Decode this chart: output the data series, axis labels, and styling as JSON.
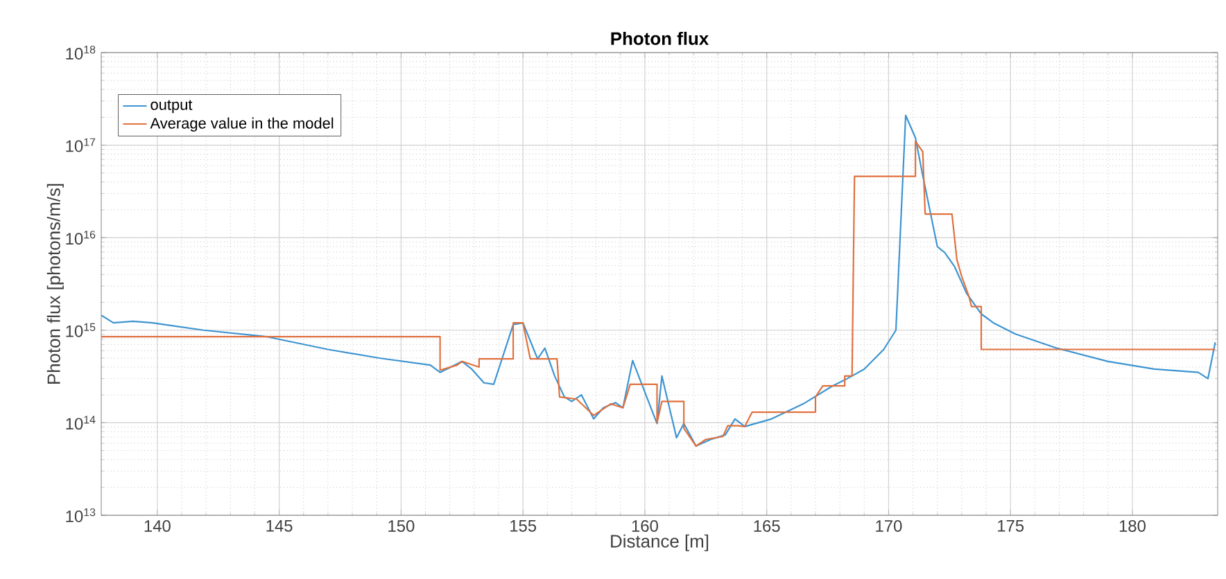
{
  "chart_data": {
    "type": "line",
    "title": "Photon flux",
    "xlabel": "Distance [m]",
    "ylabel": "Photon flux [photons/m/s]",
    "log": "y",
    "grid": true,
    "legend": "top left",
    "xlim": [
      137.7,
      183.5
    ],
    "xticks": [
      140,
      145,
      150,
      155,
      160,
      165,
      170,
      175,
      180
    ],
    "ylim": [
      10000000000000.0,
      1e+18
    ],
    "yticks": [
      {
        "value": 10000000000000.0,
        "label": "10$^{13}$"
      },
      {
        "value": 100000000000000.0,
        "label": "10$^{14}$"
      },
      {
        "value": 1000000000000000.0,
        "label": "10$^{15}$"
      },
      {
        "value": 1e+16,
        "label": "10$^{16}$"
      },
      {
        "value": 1e+17,
        "label": "10$^{17}$"
      },
      {
        "value": 1e+18,
        "label": "10$^{18}$"
      }
    ],
    "series": [
      {
        "name": "output",
        "color": "#3d94d1",
        "x": [
          137.7,
          138.2,
          139.0,
          139.8,
          141.9,
          144.5,
          147.0,
          149.1,
          151.2,
          151.6,
          152.5,
          152.9,
          153.4,
          153.8,
          154.6,
          155.0,
          155.6,
          155.9,
          156.3,
          156.7,
          157.0,
          157.4,
          157.9,
          158.3,
          158.8,
          159.1,
          159.5,
          160.5,
          160.7,
          161.3,
          161.6,
          162.1,
          162.7,
          163.3,
          163.7,
          164.1,
          165.2,
          166.5,
          167.7,
          168.2,
          169.0,
          169.8,
          170.3,
          170.7,
          171.1,
          171.4,
          172.0,
          172.3,
          172.7,
          173.2,
          173.8,
          174.3,
          175.2,
          176.9,
          179.0,
          180.9,
          182.7,
          183.1,
          183.4
        ],
        "values": [
          1450000000000000.0,
          1200000000000000.0,
          1250000000000000.0,
          1200000000000000.0,
          1000000000000000.0,
          850000000000000.0,
          620000000000000.0,
          500000000000000.0,
          420000000000000.0,
          350000000000000.0,
          460000000000000.0,
          380000000000000.0,
          270000000000000.0,
          260000000000000.0,
          1150000000000000.0,
          1200000000000000.0,
          490000000000000.0,
          640000000000000.0,
          320000000000000.0,
          190000000000000.0,
          170000000000000.0,
          200000000000000.0,
          110000000000000.0,
          145000000000000.0,
          165000000000000.0,
          145000000000000.0,
          470000000000000.0,
          98000000000000.0,
          320000000000000.0,
          69000000000000.0,
          98000000000000.0,
          56000000000000.0,
          66000000000000.0,
          74000000000000.0,
          110000000000000.0,
          91000000000000.0,
          110000000000000.0,
          160000000000000.0,
          250000000000000.0,
          290000000000000.0,
          380000000000000.0,
          620000000000000.0,
          1000000000000000.0,
          2.1e+17,
          1.2e+17,
          4.7e+16,
          8000000000000000.0,
          6900000000000000.0,
          4900000000000000.0,
          2500000000000000.0,
          1500000000000000.0,
          1200000000000000.0,
          910000000000000.0,
          640000000000000.0,
          460000000000000.0,
          380000000000000.0,
          350000000000000.0,
          300000000000000.0,
          740000000000000.0
        ]
      },
      {
        "name": "Average value in the model",
        "color": "#e0703e",
        "x": [
          137.7,
          151.6,
          151.6,
          152.3,
          152.5,
          153.2,
          153.2,
          154.6,
          154.6,
          155.0,
          155.3,
          156.4,
          156.5,
          157.2,
          157.9,
          158.6,
          159.1,
          159.4,
          160.5,
          160.5,
          160.7,
          161.6,
          161.6,
          162.1,
          162.5,
          163.2,
          163.4,
          163.8,
          164.1,
          164.4,
          167.0,
          167.0,
          167.3,
          168.2,
          168.2,
          168.5,
          168.6,
          171.1,
          171.1,
          171.4,
          171.5,
          172.6,
          172.8,
          173.0,
          173.3,
          173.4,
          173.8,
          173.8,
          183.4
        ],
        "values": [
          850000000000000.0,
          850000000000000.0,
          370000000000000.0,
          420000000000000.0,
          460000000000000.0,
          400000000000000.0,
          490000000000000.0,
          490000000000000.0,
          1200000000000000.0,
          1200000000000000.0,
          490000000000000.0,
          490000000000000.0,
          190000000000000.0,
          180000000000000.0,
          120000000000000.0,
          160000000000000.0,
          145000000000000.0,
          260000000000000.0,
          260000000000000.0,
          100000000000000.0,
          170000000000000.0,
          170000000000000.0,
          87000000000000.0,
          56000000000000.0,
          66000000000000.0,
          71000000000000.0,
          93000000000000.0,
          93000000000000.0,
          91000000000000.0,
          130000000000000.0,
          130000000000000.0,
          190000000000000.0,
          250000000000000.0,
          250000000000000.0,
          320000000000000.0,
          320000000000000.0,
          4.6e+16,
          4.6e+16,
          1.1e+17,
          8.5e+16,
          1.8e+16,
          1.8e+16,
          5800000000000000.0,
          3800000000000000.0,
          2300000000000000.0,
          1800000000000000.0,
          1800000000000000.0,
          620000000000000.0,
          620000000000000.0
        ]
      }
    ]
  }
}
